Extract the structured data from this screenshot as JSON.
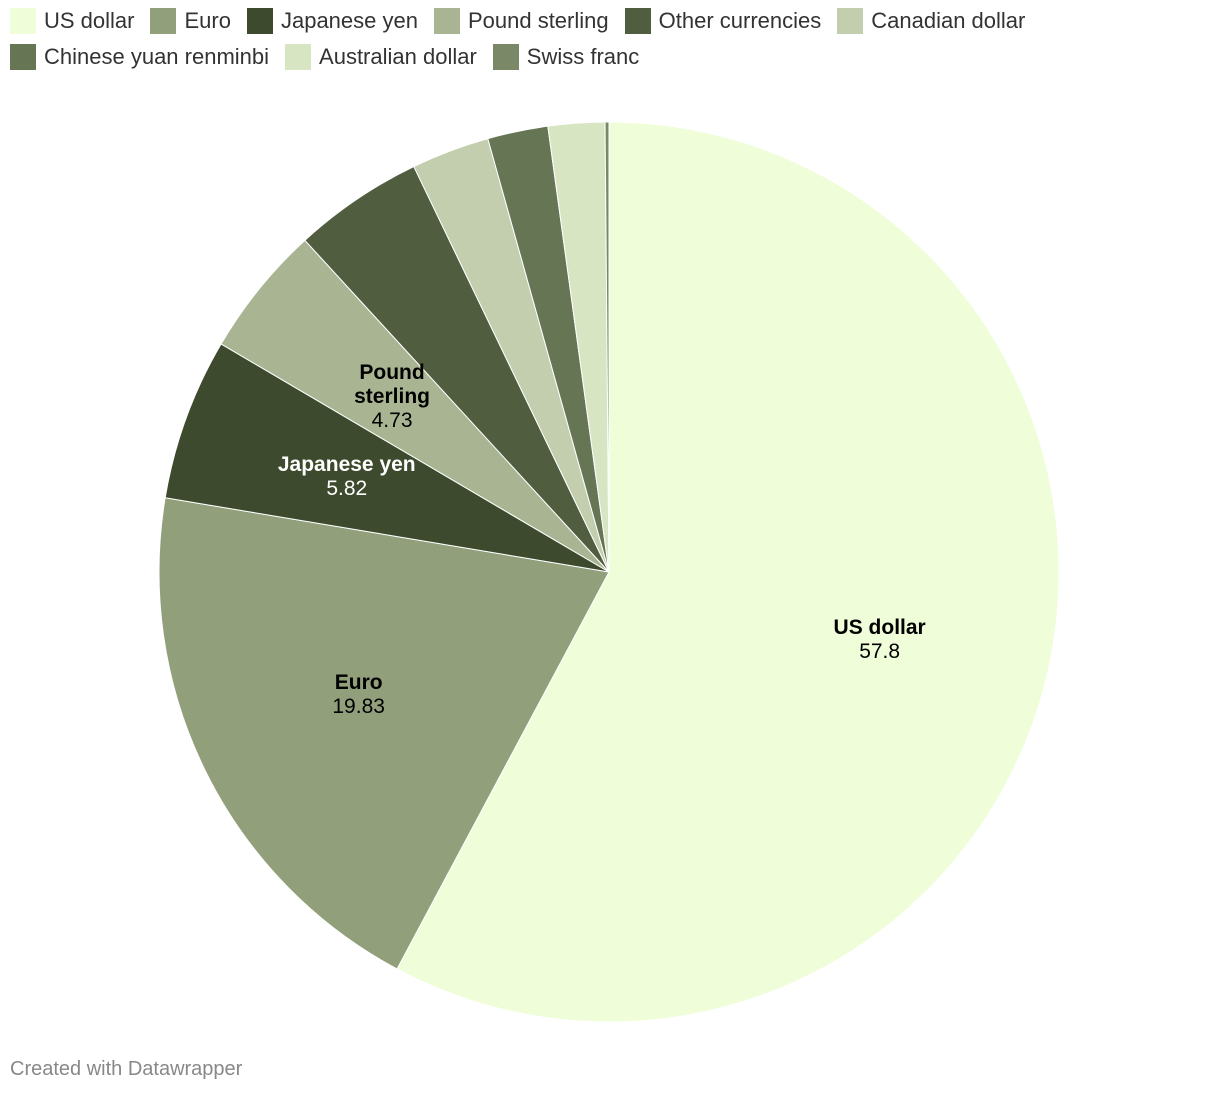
{
  "chart_data": {
    "type": "pie",
    "categories": [
      "US dollar",
      "Euro",
      "Japanese yen",
      "Pound sterling",
      "Other currencies",
      "Canadian dollar",
      "Chinese yuan renminbi",
      "Australian dollar",
      "Swiss franc"
    ],
    "values": [
      57.8,
      19.83,
      5.82,
      4.73,
      4.67,
      2.8,
      2.17,
      2.03,
      0.14
    ],
    "colors": [
      "#effdd8",
      "#929f7b",
      "#3d4a2d",
      "#a9b592",
      "#505d3e",
      "#c2cead",
      "#667553",
      "#d8e5c3",
      "#7a8867"
    ],
    "credit": "Created with Datawrapper"
  }
}
